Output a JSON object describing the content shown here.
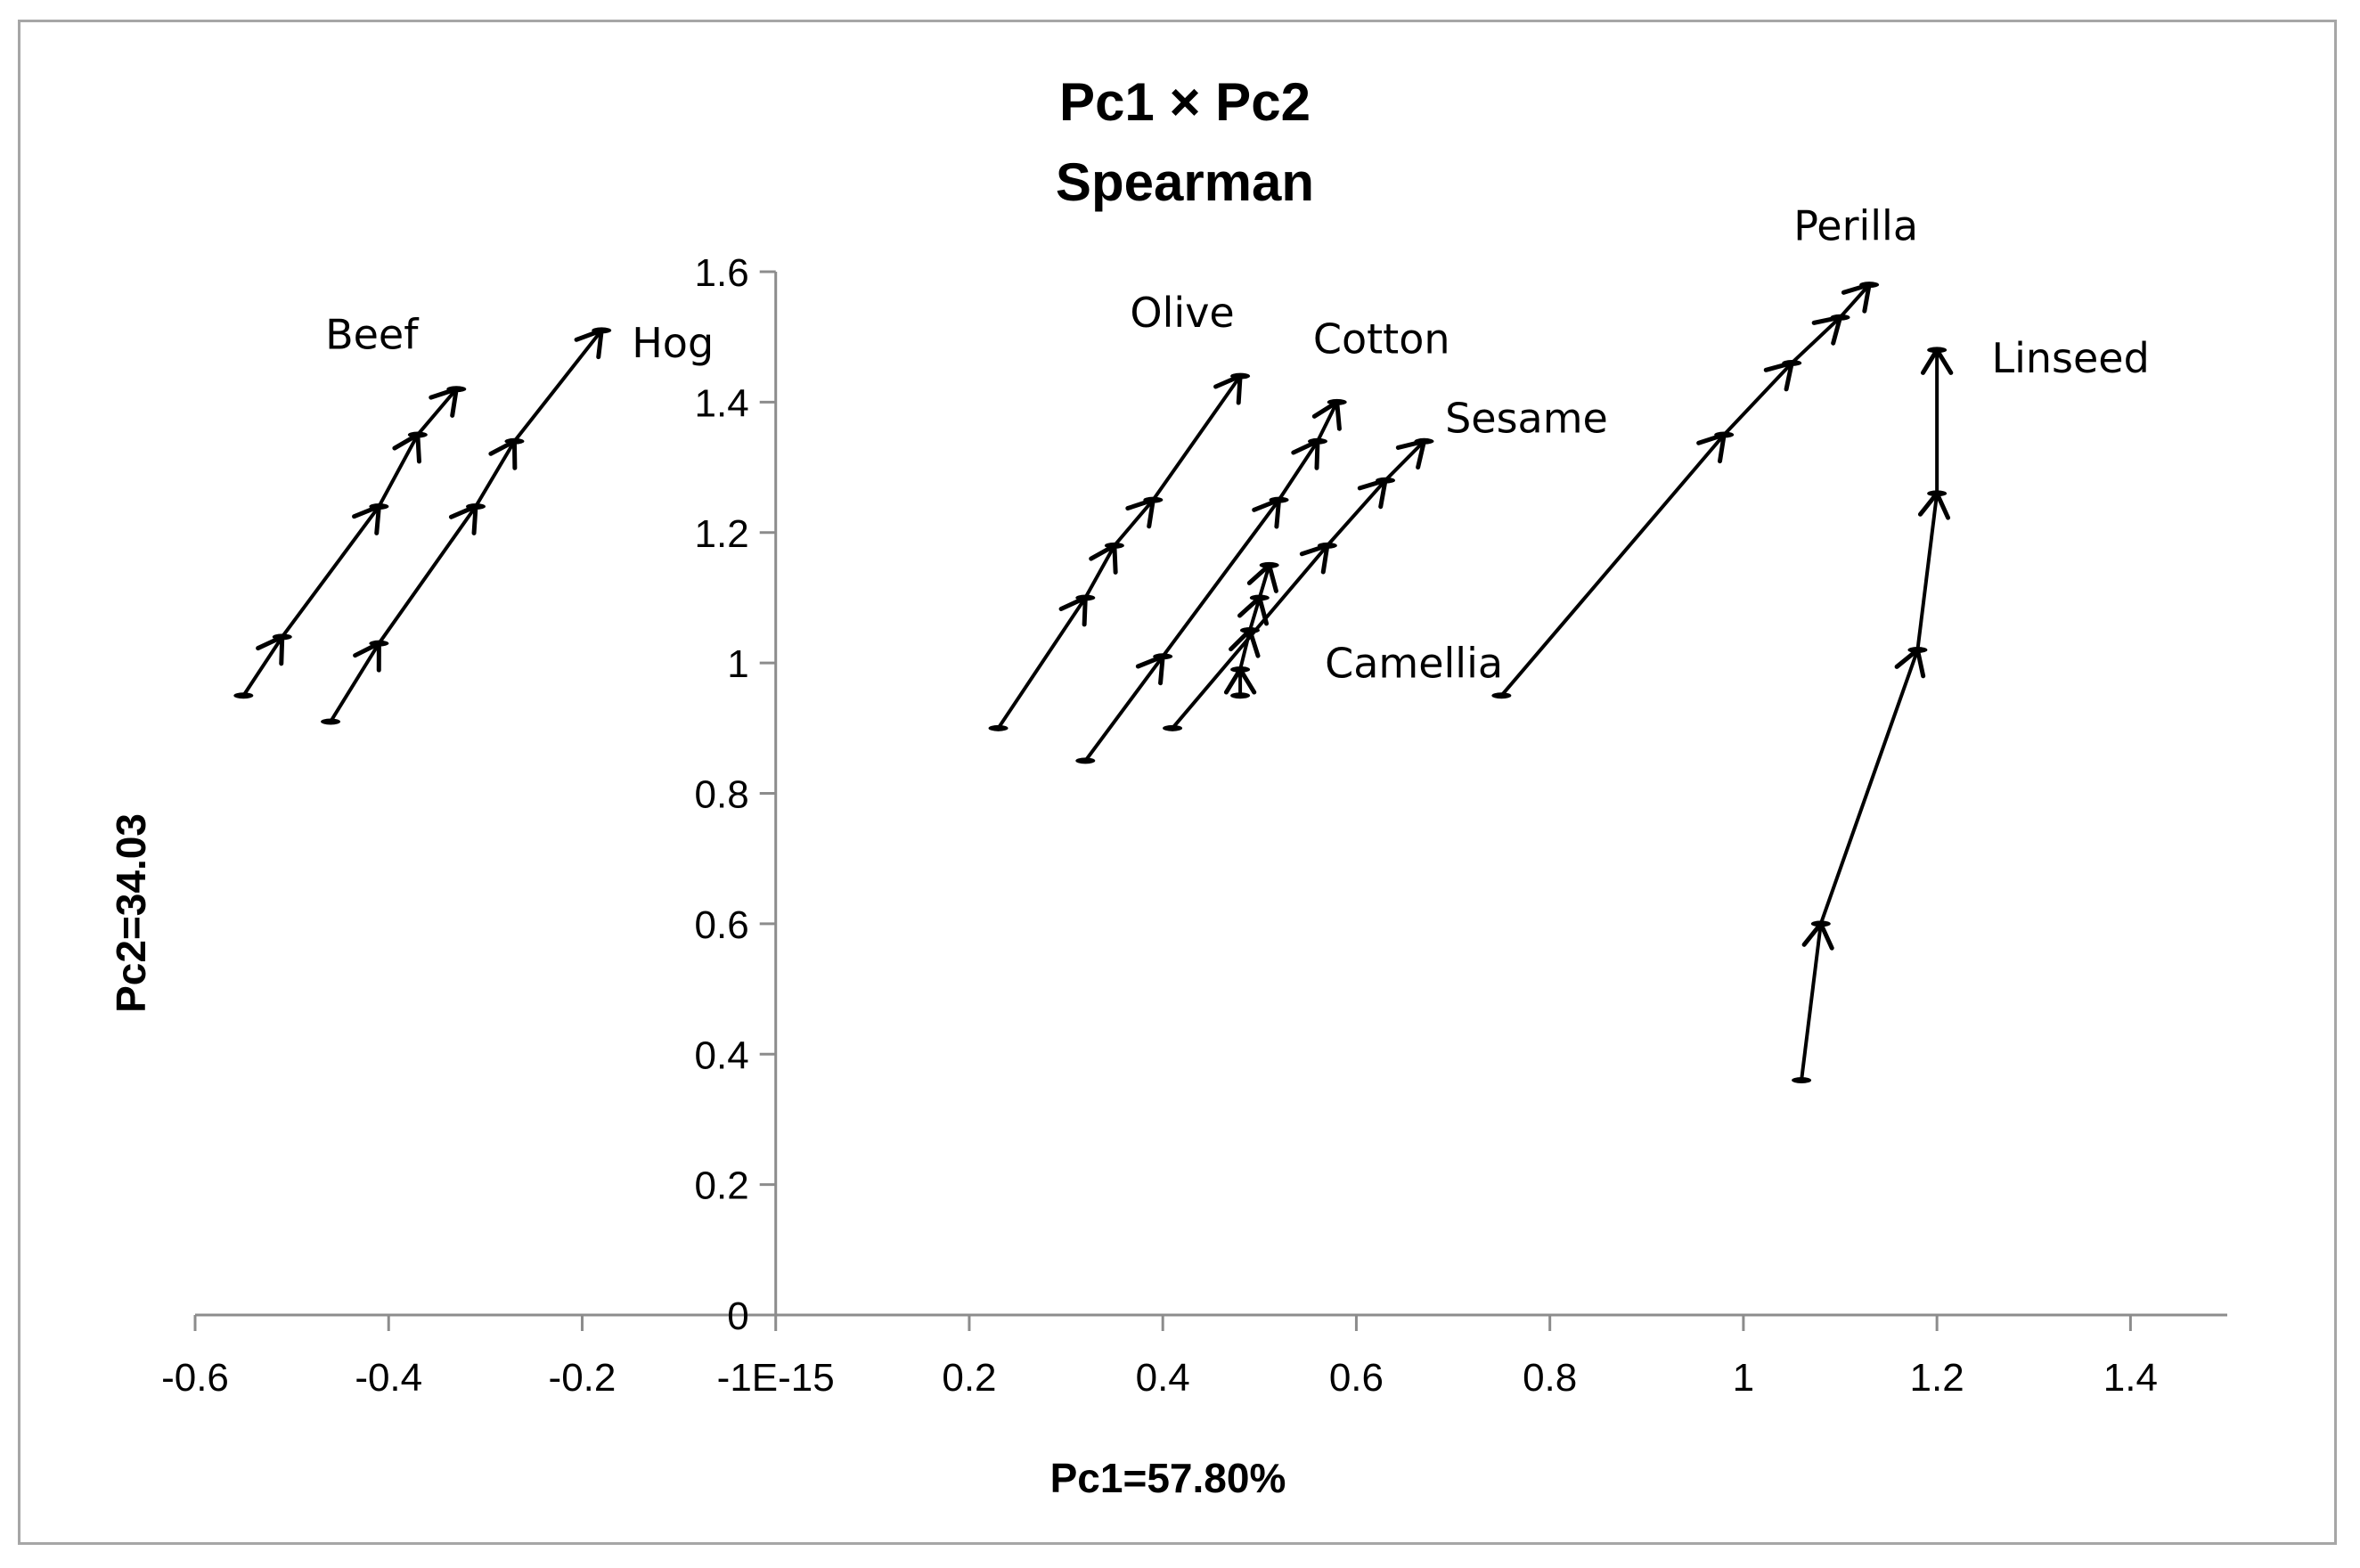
{
  "chart_data": {
    "type": "scatter",
    "title": "Pc1 × Pc2",
    "subtitle": "Spearman",
    "xlabel": "Pc1=57.80%",
    "ylabel": "Pc2=34.03",
    "xlim": [
      -0.6,
      1.5
    ],
    "ylim": [
      0,
      1.6
    ],
    "x_ticks": [
      -0.6,
      -0.4,
      -0.2,
      0,
      0.2,
      0.4,
      0.6,
      0.8,
      1.0,
      1.2,
      1.4
    ],
    "x_tick_labels": [
      "-0.6",
      "-0.4",
      "-0.2",
      "-1E-15",
      "0.2",
      "0.4",
      "0.6",
      "0.8",
      "1",
      "1.2",
      "1.4"
    ],
    "y_ticks": [
      0,
      0.2,
      0.4,
      0.6,
      0.8,
      1.0,
      1.2,
      1.4,
      1.6
    ],
    "y_tick_labels": [
      "0",
      "0.2",
      "0.4",
      "0.6",
      "0.8",
      "1",
      "1.2",
      "1.4",
      "1.6"
    ],
    "series": [
      {
        "name": "Beef",
        "label": "Beef",
        "x": [
          -0.55,
          -0.51,
          -0.41,
          -0.37,
          -0.33
        ],
        "y": [
          0.95,
          1.04,
          1.24,
          1.35,
          1.42
        ]
      },
      {
        "name": "Hog",
        "label": "Hog",
        "x": [
          -0.46,
          -0.41,
          -0.31,
          -0.27,
          -0.18
        ],
        "y": [
          0.91,
          1.03,
          1.24,
          1.34,
          1.51
        ]
      },
      {
        "name": "Olive",
        "label": "Olive",
        "x": [
          0.23,
          0.32,
          0.35,
          0.39,
          0.48
        ],
        "y": [
          0.9,
          1.1,
          1.18,
          1.25,
          1.44
        ]
      },
      {
        "name": "Cotton",
        "label": "Cotton",
        "x": [
          0.32,
          0.4,
          0.52,
          0.56,
          0.58
        ],
        "y": [
          0.85,
          1.01,
          1.25,
          1.34,
          1.4
        ]
      },
      {
        "name": "Sesame",
        "label": "Sesame",
        "x": [
          0.41,
          0.57,
          0.63,
          0.67
        ],
        "y": [
          0.9,
          1.18,
          1.28,
          1.34
        ]
      },
      {
        "name": "Camellia",
        "label": "Camellia",
        "x": [
          0.48,
          0.48,
          0.49,
          0.5,
          0.51
        ],
        "y": [
          0.95,
          0.99,
          1.05,
          1.1,
          1.15
        ]
      },
      {
        "name": "Perilla",
        "label": "Perilla",
        "x": [
          0.75,
          0.98,
          1.05,
          1.1,
          1.13
        ],
        "y": [
          0.95,
          1.35,
          1.46,
          1.53,
          1.58
        ]
      },
      {
        "name": "Linseed",
        "label": "Linseed",
        "x": [
          1.06,
          1.08,
          1.18,
          1.2,
          1.2
        ],
        "y": [
          0.36,
          0.6,
          1.02,
          1.26,
          1.48
        ]
      }
    ]
  }
}
